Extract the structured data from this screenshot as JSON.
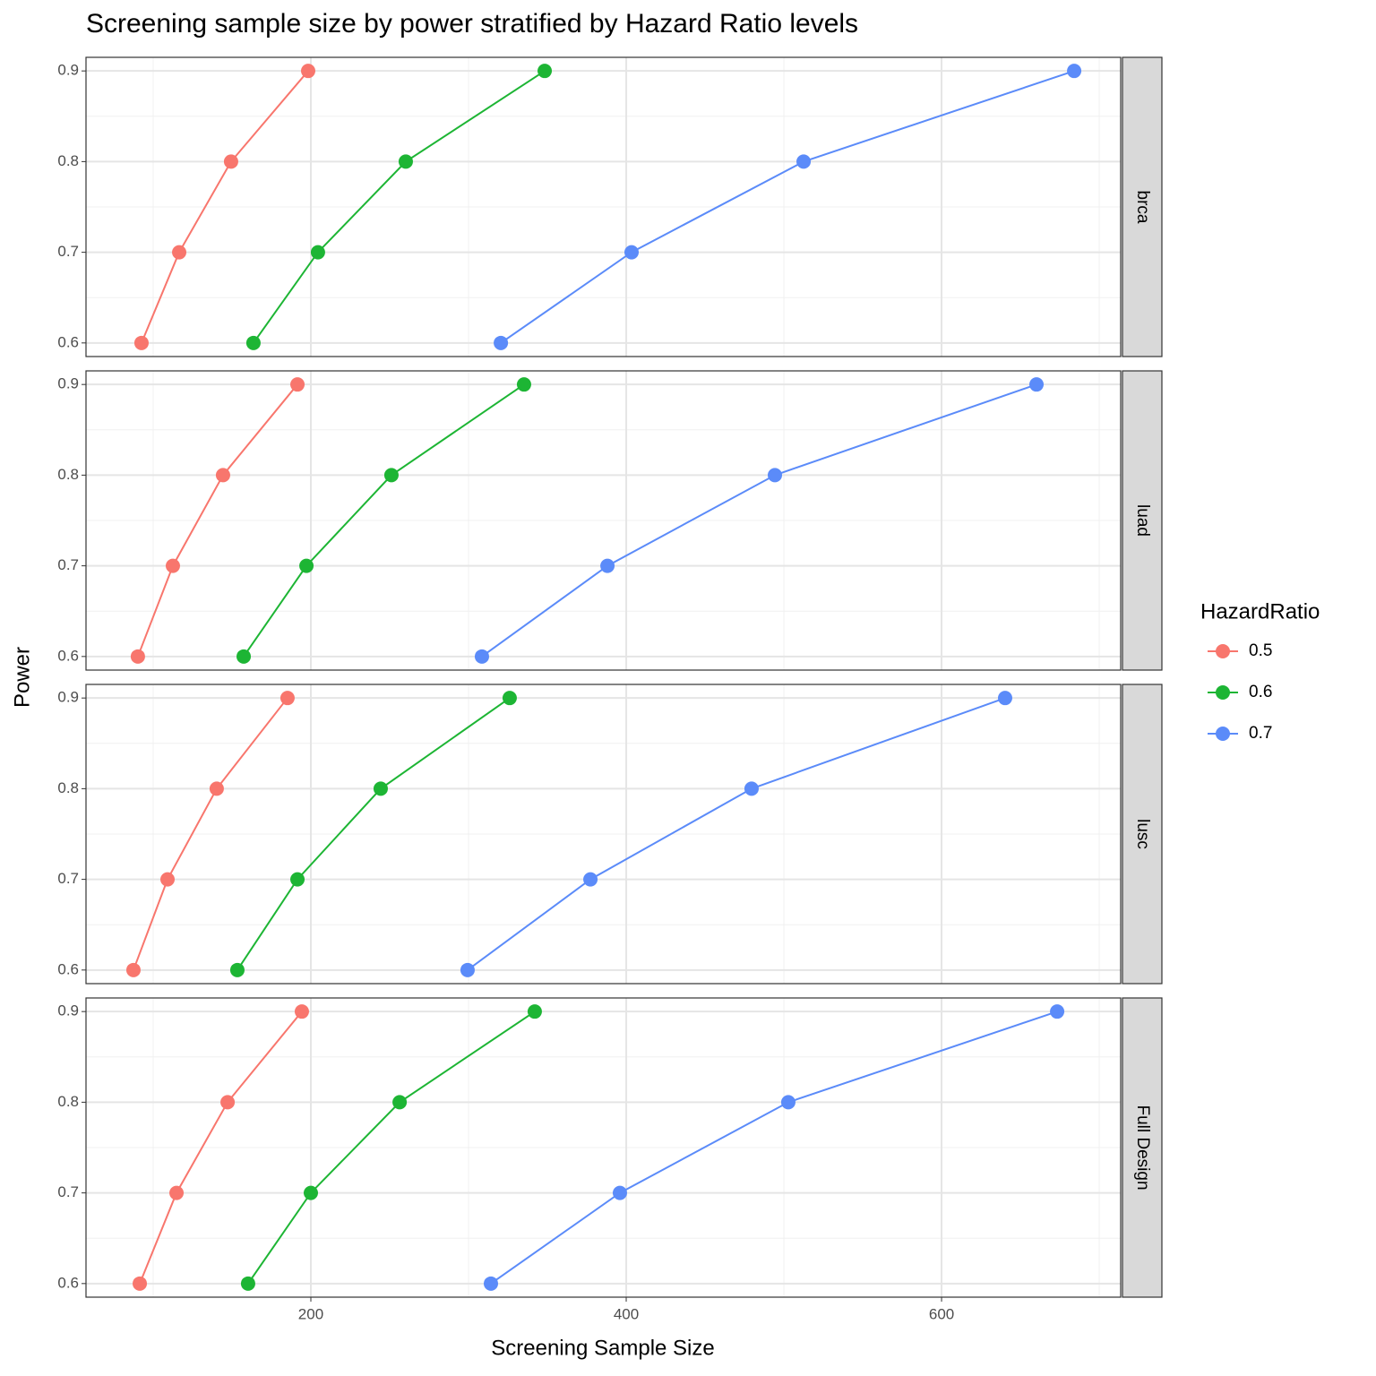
{
  "chart_data": {
    "type": "line",
    "title": "Screening sample size by power stratified by Hazard Ratio levels",
    "x_label": "Screening Sample Size",
    "y_label": "Power",
    "legend_title": "HazardRatio",
    "xlim": [
      57.4,
      713.6
    ],
    "xticks": [
      200,
      400,
      600
    ],
    "ylim": [
      0.585,
      0.915
    ],
    "yticks": [
      0.6,
      0.7,
      0.8,
      0.9
    ],
    "grid": true,
    "series": [
      {
        "name": "0.5",
        "color": "#f8766d"
      },
      {
        "name": "0.6",
        "color": "#1db534"
      },
      {
        "name": "0.7",
        "color": "#5b8bf9"
      }
    ],
    "facets": [
      {
        "label": "brca",
        "series": [
          {
            "x": [
              92.6,
              116.5,
              149.4,
              198.3
            ],
            "values": [
              0.6,
              0.7,
              0.8,
              0.9
            ]
          },
          {
            "x": [
              163.6,
              204.5,
              260.2,
              348.3
            ],
            "values": [
              0.6,
              0.7,
              0.8,
              0.9
            ]
          },
          {
            "x": [
              320.5,
              403.4,
              512.5,
              684.1
            ],
            "values": [
              0.6,
              0.7,
              0.8,
              0.9
            ]
          }
        ]
      },
      {
        "label": "luad",
        "series": [
          {
            "x": [
              90.3,
              112.5,
              144.3,
              191.5
            ],
            "values": [
              0.6,
              0.7,
              0.8,
              0.9
            ]
          },
          {
            "x": [
              157.4,
              197.2,
              251.1,
              335.2
            ],
            "values": [
              0.6,
              0.7,
              0.8,
              0.9
            ]
          },
          {
            "x": [
              308.5,
              388.1,
              494.3,
              660.2
            ],
            "values": [
              0.6,
              0.7,
              0.8,
              0.9
            ]
          }
        ]
      },
      {
        "label": "lusc",
        "series": [
          {
            "x": [
              87.5,
              109.1,
              140.3,
              185.2
            ],
            "values": [
              0.6,
              0.7,
              0.8,
              0.9
            ]
          },
          {
            "x": [
              153.4,
              191.5,
              244.3,
              326.1
            ],
            "values": [
              0.6,
              0.7,
              0.8,
              0.9
            ]
          },
          {
            "x": [
              299.4,
              377.3,
              479.5,
              640.3
            ],
            "values": [
              0.6,
              0.7,
              0.8,
              0.9
            ]
          }
        ]
      },
      {
        "label": "Full Design",
        "series": [
          {
            "x": [
              91.5,
              114.8,
              147.2,
              194.3
            ],
            "values": [
              0.6,
              0.7,
              0.8,
              0.9
            ]
          },
          {
            "x": [
              160.2,
              200.0,
              256.3,
              342.0
            ],
            "values": [
              0.6,
              0.7,
              0.8,
              0.9
            ]
          },
          {
            "x": [
              314.2,
              396.0,
              502.8,
              673.3
            ],
            "values": [
              0.6,
              0.7,
              0.8,
              0.9
            ]
          }
        ]
      }
    ]
  }
}
